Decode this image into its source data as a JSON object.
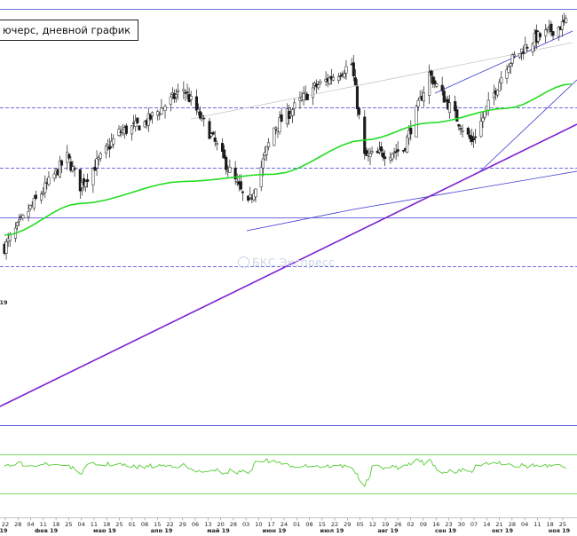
{
  "chart": {
    "title": "ючерс, дневной график",
    "watermark": "БКС Экспресс"
  },
  "colors": {
    "ma": "#22dd22",
    "trend": "#7a1fd0",
    "channel": "#3a3ad0",
    "level": "#3c3cd2",
    "candle": "#1a1a1a",
    "oscillator": "#55cc33"
  },
  "chart_data": {
    "type": "candlestick",
    "panels": [
      "price",
      "oscillator"
    ],
    "x_tick_labels": [
      "22",
      "28",
      "04",
      "11",
      "18",
      "25",
      "04",
      "11",
      "18",
      "25",
      "01",
      "08",
      "15",
      "22",
      "29",
      "06",
      "13",
      "20",
      "28",
      "03",
      "10",
      "17",
      "24",
      "01",
      "08",
      "15",
      "22",
      "29",
      "05",
      "12",
      "19",
      "26",
      "02",
      "09",
      "16",
      "23",
      "30",
      "07",
      "14",
      "21",
      "28",
      "04",
      "11",
      "18",
      "25"
    ],
    "month_labels": [
      "фев 19",
      "мар 19",
      "апр 19",
      "май 19",
      "июн 19",
      "июл 19",
      "авг 19",
      "сен 19",
      "окт 19",
      "ноя 19"
    ],
    "year_labels": [
      "19",
      "19"
    ],
    "price_path": [
      {
        "date": "2019-01-22",
        "close": 0.15
      },
      {
        "date": "2019-02-04",
        "close": 0.3
      },
      {
        "date": "2019-02-25",
        "close": 0.52
      },
      {
        "date": "2019-03-04",
        "close": 0.4
      },
      {
        "date": "2019-03-25",
        "close": 0.62
      },
      {
        "date": "2019-04-08",
        "close": 0.66
      },
      {
        "date": "2019-04-29",
        "close": 0.8
      },
      {
        "date": "2019-05-13",
        "close": 0.62
      },
      {
        "date": "2019-06-03",
        "close": 0.32
      },
      {
        "date": "2019-06-17",
        "close": 0.64
      },
      {
        "date": "2019-07-08",
        "close": 0.8
      },
      {
        "date": "2019-07-29",
        "close": 0.9
      },
      {
        "date": "2019-08-05",
        "close": 0.52
      },
      {
        "date": "2019-08-26",
        "close": 0.55
      },
      {
        "date": "2019-09-09",
        "close": 0.86
      },
      {
        "date": "2019-10-02",
        "close": 0.58
      },
      {
        "date": "2019-10-21",
        "close": 0.9
      },
      {
        "date": "2019-11-04",
        "close": 1.0
      },
      {
        "date": "2019-11-25",
        "close": 1.08
      }
    ],
    "moving_average": [
      {
        "date": "2019-01-22",
        "value": 0.2
      },
      {
        "date": "2019-03-04",
        "value": 0.33
      },
      {
        "date": "2019-04-29",
        "value": 0.42
      },
      {
        "date": "2019-06-17",
        "value": 0.45
      },
      {
        "date": "2019-08-05",
        "value": 0.59
      },
      {
        "date": "2019-09-09",
        "value": 0.66
      },
      {
        "date": "2019-10-21",
        "value": 0.72
      },
      {
        "date": "2019-11-25",
        "value": 0.82
      }
    ]
  }
}
